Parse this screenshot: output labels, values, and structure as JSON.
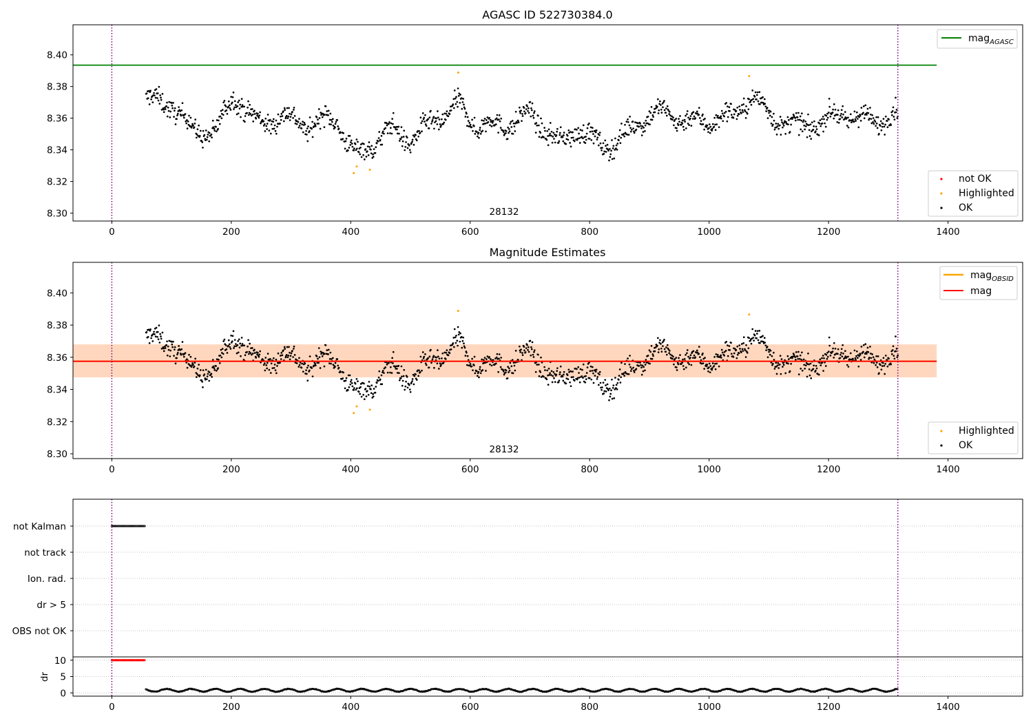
{
  "chart_data": [
    {
      "type": "scatter",
      "title": "AGASC ID 522730384.0",
      "annotation": "28132",
      "xlim": [
        -65,
        1525
      ],
      "ylim": [
        8.295,
        8.419
      ],
      "x_ticks": [
        0,
        200,
        400,
        600,
        800,
        1000,
        1200,
        1400
      ],
      "y_ticks": [
        8.3,
        8.32,
        8.34,
        8.36,
        8.38,
        8.4
      ],
      "vlines": [
        0,
        1316
      ],
      "hline": {
        "name": "mag_AGASC",
        "y": 8.3935,
        "x_range": [
          -65,
          1381
        ],
        "color": "#008000"
      },
      "legend_lines": [
        {
          "label": "mag",
          "sub": "AGASC",
          "color": "#008000"
        }
      ],
      "legend_points": [
        {
          "label": "not OK",
          "color": "#ff0000"
        },
        {
          "label": "Highlighted",
          "color": "#ffa500"
        },
        {
          "label": "OK",
          "color": "#000000"
        }
      ],
      "series": [
        {
          "name": "OK",
          "color": "#000000",
          "x_range": [
            57,
            1316
          ],
          "trend_x": [
            57,
            100,
            140,
            175,
            205,
            240,
            280,
            330,
            375,
            405,
            430,
            470,
            500,
            540,
            580,
            610,
            650,
            700,
            750,
            780,
            820,
            860,
            900,
            950,
            1000,
            1040,
            1070,
            1100,
            1150,
            1190,
            1220,
            1260,
            1316
          ],
          "trend_y": [
            8.37,
            8.372,
            8.352,
            8.348,
            8.374,
            8.36,
            8.362,
            8.352,
            8.362,
            8.34,
            8.342,
            8.35,
            8.345,
            8.362,
            8.368,
            8.352,
            8.355,
            8.366,
            8.34,
            8.352,
            8.345,
            8.35,
            8.36,
            8.362,
            8.36,
            8.358,
            8.372,
            8.365,
            8.355,
            8.354,
            8.362,
            8.362,
            8.36
          ]
        },
        {
          "name": "Highlighted",
          "color": "#ffa500",
          "x": [
            405,
            410,
            432,
            580,
            1067
          ],
          "y": [
            8.3253,
            8.3295,
            8.3274,
            8.3888,
            8.3866
          ]
        }
      ]
    },
    {
      "type": "scatter",
      "title": "Magnitude Estimates",
      "annotation": "28132",
      "xlim": [
        -65,
        1525
      ],
      "ylim": [
        8.297,
        8.419
      ],
      "x_ticks": [
        0,
        200,
        400,
        600,
        800,
        1000,
        1200,
        1400
      ],
      "y_ticks": [
        8.3,
        8.32,
        8.34,
        8.36,
        8.38,
        8.4
      ],
      "vlines": [
        0,
        1316
      ],
      "mag": {
        "y": 8.3575,
        "band": [
          8.3475,
          8.368
        ],
        "x_range": [
          -65,
          1381
        ],
        "color": "#ff0000"
      },
      "mag_obsid": {
        "y": 8.3575,
        "x_range": [
          -65,
          1381
        ],
        "color": "#ffa500"
      },
      "legend_lines": [
        {
          "label": "mag",
          "sub": "OBSID",
          "color": "#ffa500"
        },
        {
          "label": "mag",
          "sub": "",
          "color": "#ff0000"
        }
      ],
      "legend_points": [
        {
          "label": "Highlighted",
          "color": "#ffa500"
        },
        {
          "label": "OK",
          "color": "#000000"
        }
      ]
    },
    {
      "type": "scatter",
      "title": "",
      "xlim": [
        -65,
        1525
      ],
      "x_ticks": [
        0,
        200,
        400,
        600,
        800,
        1000,
        1200,
        1400
      ],
      "vlines": [
        0,
        1316
      ],
      "flag_categories": [
        "not Kalman",
        "not track",
        "Ion. rad.",
        "dr > 5",
        "OBS not OK"
      ],
      "flags": [
        {
          "category": "not Kalman",
          "x_range": [
            0,
            56
          ]
        }
      ],
      "dr": {
        "ylabel": "dr",
        "y_ticks": [
          0,
          5,
          10
        ],
        "ylim": [
          -1,
          11
        ],
        "high_range": {
          "x": [
            0,
            56
          ],
          "y": 10,
          "color": "#ff0000"
        },
        "low_range": {
          "x": [
            57,
            1316
          ],
          "y_min": 0.2,
          "y_max": 1.4
        }
      }
    }
  ]
}
